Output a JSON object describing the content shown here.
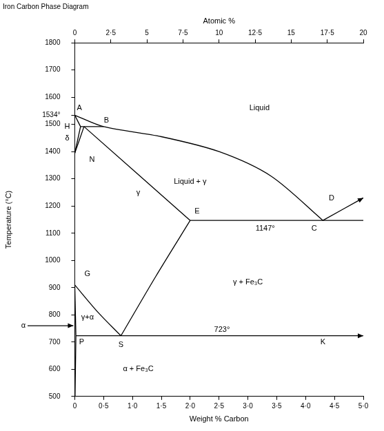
{
  "chart_data": {
    "type": "line",
    "title": "Iron Carbon Phase Diagram",
    "x_label": "Weight % Carbon",
    "x2_label": "Atomic %",
    "y_label": "Temperature (°C)",
    "color": "#000000",
    "grid": false,
    "xlim": [
      0,
      5
    ],
    "xticks": [
      0,
      {
        "value": 0.5,
        "label": "0·5"
      },
      {
        "value": 1,
        "label": "1·0"
      },
      {
        "value": 1.5,
        "label": "1·5"
      },
      {
        "value": 2,
        "label": "2·0"
      },
      {
        "value": 2.5,
        "label": "2·5"
      },
      {
        "value": 3,
        "label": "3·0"
      },
      {
        "value": 3.5,
        "label": "3·5"
      },
      {
        "value": 4,
        "label": "4·0"
      },
      {
        "value": 4.5,
        "label": "4·5"
      },
      {
        "value": 5,
        "label": "5·0"
      }
    ],
    "x2lim": [
      0,
      20
    ],
    "x2ticks": [
      0,
      {
        "value": 2.5,
        "label": "2·5"
      },
      5,
      {
        "value": 7.5,
        "label": "7·5"
      },
      10,
      {
        "value": 12.5,
        "label": "12·5"
      },
      15,
      {
        "value": 17.5,
        "label": "17·5"
      },
      20
    ],
    "ylim": [
      500,
      1800
    ],
    "yticks": [
      500,
      600,
      700,
      800,
      900,
      1000,
      1100,
      1200,
      1300,
      1400,
      1500,
      {
        "value": 1534,
        "label": "1534°"
      },
      1600,
      1700,
      1800
    ],
    "series": [
      {
        "x": [
          0,
          0.5,
          1.5,
          2.5,
          3.4,
          4.3
        ],
        "values": [
          1534,
          1492,
          1455,
          1400,
          1310,
          1147
        ],
        "marker": "none"
      },
      {
        "x": [
          0,
          0.1
        ],
        "values": [
          1534,
          1492
        ],
        "marker": "none"
      },
      {
        "x": [
          0.1,
          0.5
        ],
        "values": [
          1492,
          1492
        ],
        "marker": "none"
      },
      {
        "x": [
          0.1,
          0
        ],
        "values": [
          1492,
          1394
        ],
        "marker": "none"
      },
      {
        "x": [
          0.16,
          0
        ],
        "values": [
          1492,
          1394
        ],
        "marker": "none"
      },
      {
        "x": [
          0.16,
          2.0
        ],
        "values": [
          1492,
          1147
        ],
        "marker": "none"
      },
      {
        "x": [
          2.0,
          5.0
        ],
        "values": [
          1147,
          1147
        ],
        "marker": "none"
      },
      {
        "x": [
          4.3,
          5.0
        ],
        "values": [
          1147,
          1230
        ],
        "marker": "arrow"
      },
      {
        "x": [
          2.0,
          1.4,
          0.8
        ],
        "values": [
          1147,
          940,
          723
        ],
        "marker": "none"
      },
      {
        "x": [
          0,
          0.4,
          0.8
        ],
        "values": [
          910,
          810,
          723
        ],
        "marker": "none"
      },
      {
        "x": [
          0,
          0.02
        ],
        "values": [
          910,
          723
        ],
        "marker": "none"
      },
      {
        "x": [
          0.02,
          0.005
        ],
        "values": [
          723,
          500
        ],
        "marker": "none"
      },
      {
        "x": [
          0.02,
          5.0
        ],
        "values": [
          723,
          723
        ],
        "marker": "arrow"
      }
    ],
    "annotations": [
      {
        "text": "Liquid",
        "x": 3.2,
        "y": 1560
      },
      {
        "text": "Liquid + γ",
        "x": 2.0,
        "y": 1290
      },
      {
        "text": "γ",
        "x": 1.1,
        "y": 1250
      },
      {
        "text": "γ + Fe₃C",
        "x": 3.0,
        "y": 920
      },
      {
        "text": "γ+α",
        "x": 0.22,
        "y": 790
      },
      {
        "text": "α + Fe₃C",
        "x": 1.1,
        "y": 600
      },
      {
        "text": "1147°",
        "x": 3.3,
        "y": 1118
      },
      {
        "text": "723°",
        "x": 2.55,
        "y": 745
      },
      {
        "text": "A",
        "x": 0.08,
        "y": 1560
      },
      {
        "text": "B",
        "x": 0.55,
        "y": 1515
      },
      {
        "text": "N",
        "x": 0.3,
        "y": 1370
      },
      {
        "text": "G",
        "x": 0.22,
        "y": 950
      },
      {
        "text": "P",
        "x": 0.12,
        "y": 700
      },
      {
        "text": "S",
        "x": 0.8,
        "y": 690
      },
      {
        "text": "E",
        "x": 2.12,
        "y": 1180
      },
      {
        "text": "C",
        "x": 4.15,
        "y": 1118
      },
      {
        "text": "D",
        "x": 4.45,
        "y": 1228
      },
      {
        "text": "K",
        "x": 4.3,
        "y": 700
      }
    ],
    "side_labels": [
      {
        "text": "H",
        "y": 1492,
        "marker": "none"
      },
      {
        "text": "δ",
        "y": 1450,
        "marker": "none"
      },
      {
        "text": "α",
        "y": 760,
        "marker": "arrow"
      }
    ]
  }
}
